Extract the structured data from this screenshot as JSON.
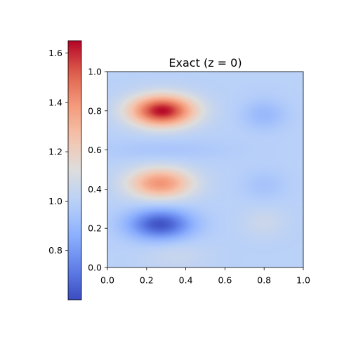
{
  "chart_data": {
    "type": "heatmap",
    "title": "Exact (z = 0)",
    "xlabel": "",
    "ylabel": "",
    "xlim": [
      0.0,
      1.0
    ],
    "ylim": [
      0.0,
      1.0
    ],
    "xticks": [
      "0.0",
      "0.2",
      "0.4",
      "0.6",
      "0.8",
      "1.0"
    ],
    "yticks": [
      "0.0",
      "0.2",
      "0.4",
      "0.6",
      "0.8",
      "1.0"
    ],
    "grid": false,
    "colormap": "coolwarm",
    "colorbar": {
      "placement": "left",
      "vmin": 0.6,
      "vmax": 1.65,
      "ticks": [
        "0.8",
        "1.0",
        "1.2",
        "1.4",
        "1.6"
      ]
    },
    "baseline": 1.0,
    "features": [
      {
        "x": 0.28,
        "y": 0.8,
        "value": 1.64
      },
      {
        "x": 0.27,
        "y": 0.43,
        "value": 1.4
      },
      {
        "x": 0.27,
        "y": 0.22,
        "value": 0.62
      },
      {
        "x": 0.8,
        "y": 0.78,
        "value": 0.9
      },
      {
        "x": 0.8,
        "y": 0.42,
        "value": 0.94
      },
      {
        "x": 0.8,
        "y": 0.23,
        "value": 1.06
      },
      {
        "x": 0.35,
        "y": 0.06,
        "value": 1.05
      }
    ]
  },
  "colors": {
    "cmap_low": "#3b4cc0",
    "cmap_mid": "#dddddd",
    "cmap_high": "#b40426",
    "axis": "#000000"
  }
}
